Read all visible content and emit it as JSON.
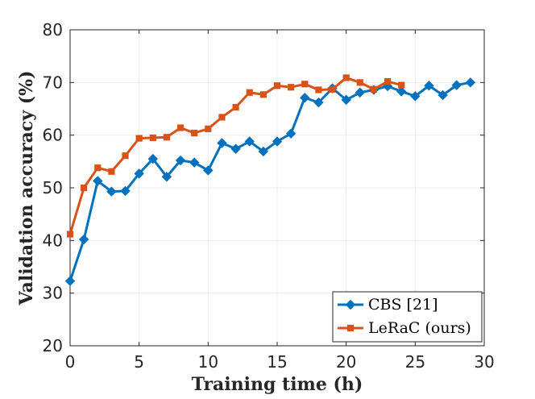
{
  "chart_data": {
    "type": "line",
    "title": "",
    "xlabel": "Training time (h)",
    "ylabel": "Validation accuracy (%)",
    "xlim": [
      0,
      30
    ],
    "ylim": [
      20,
      80
    ],
    "xticks": [
      0,
      5,
      10,
      15,
      20,
      25,
      30
    ],
    "yticks": [
      20,
      30,
      40,
      50,
      60,
      70,
      80
    ],
    "grid": true,
    "legend_position": "bottom-right",
    "series": [
      {
        "name": "CBS [21]",
        "color": "#0072BD",
        "marker": "diamond",
        "x": [
          0,
          1,
          2,
          3,
          4,
          5,
          6,
          7,
          8,
          9,
          10,
          11,
          12,
          13,
          14,
          15,
          16,
          17,
          18,
          19,
          20,
          21,
          22,
          23,
          24,
          25,
          26,
          27,
          28,
          29
        ],
        "y": [
          32.3,
          40.2,
          51.3,
          49.3,
          49.4,
          52.7,
          55.5,
          52.1,
          55.2,
          54.8,
          53.3,
          58.5,
          57.4,
          58.8,
          56.9,
          58.8,
          60.3,
          67.1,
          66.2,
          68.9,
          66.7,
          68.1,
          68.6,
          69.3,
          68.3,
          67.4,
          69.4,
          67.6,
          69.5,
          70.0
        ]
      },
      {
        "name": "LeRaC (ours)",
        "color": "#D95319",
        "marker": "square",
        "x": [
          0,
          1,
          2,
          3,
          4,
          5,
          6,
          7,
          8,
          9,
          10,
          11,
          12,
          13,
          14,
          15,
          16,
          17,
          18,
          19,
          20,
          21,
          22,
          23,
          24
        ],
        "y": [
          41.2,
          50.0,
          53.8,
          53.1,
          56.1,
          59.4,
          59.5,
          59.6,
          61.4,
          60.4,
          61.2,
          63.4,
          65.3,
          68.1,
          67.7,
          69.4,
          69.1,
          69.7,
          68.6,
          68.7,
          70.9,
          70.0,
          68.7,
          70.2,
          69.5
        ]
      }
    ]
  }
}
